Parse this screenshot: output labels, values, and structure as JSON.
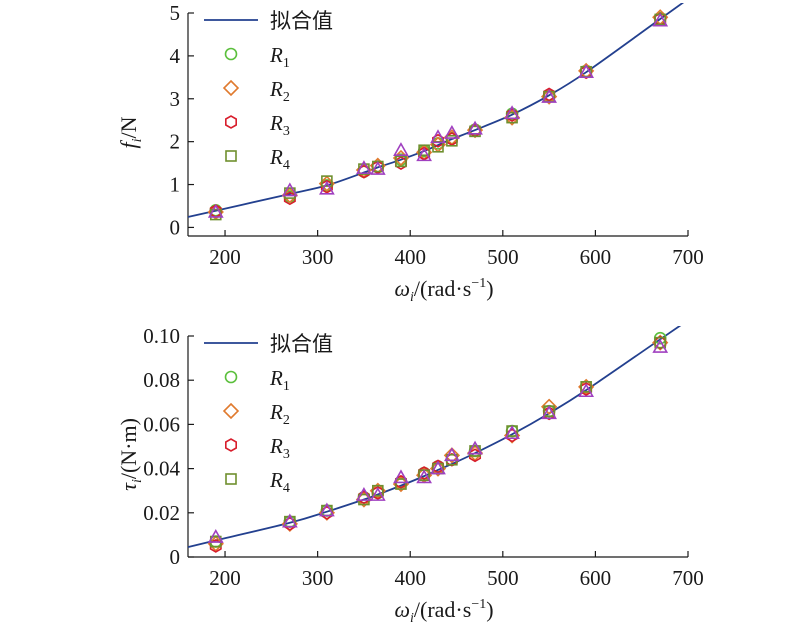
{
  "chart_data": [
    {
      "type": "scatter",
      "fit_line": true,
      "x_data": [
        190,
        270,
        310,
        350,
        365,
        390,
        415,
        430,
        445,
        470,
        510,
        550,
        590,
        670
      ],
      "fit_y": [
        0.39,
        0.78,
        0.98,
        1.28,
        1.4,
        1.58,
        1.78,
        1.92,
        2.06,
        2.27,
        2.63,
        3.08,
        3.62,
        4.86
      ],
      "x_ticks": [
        "200",
        "300",
        "400",
        "500",
        "600",
        "700"
      ],
      "y_ticks": [
        "0",
        "1",
        "2",
        "3",
        "4",
        "5"
      ],
      "xlim": [
        160,
        700
      ],
      "ylim": [
        -0.2,
        5
      ],
      "x_tick_values": [
        200,
        300,
        400,
        500,
        600,
        700
      ],
      "y_tick_values": [
        0,
        1,
        2,
        3,
        4,
        5
      ],
      "ylabel": {
        "main": "f",
        "sub": "i",
        "rest": "/N"
      },
      "xlabel": {
        "main": "ω",
        "sub": "i",
        "rest": "/(rad·s",
        "sup": "−1",
        "close": ")"
      },
      "legend_fit": "拟合值",
      "series": [
        {
          "name": "R1",
          "name_main": "R",
          "name_sub": "1",
          "marker": "circle",
          "color": "#5bbf3c",
          "values": [
            0.4,
            0.72,
            0.98,
            1.3,
            1.42,
            1.58,
            1.78,
            1.96,
            2.08,
            2.28,
            2.65,
            3.08,
            3.65,
            4.88
          ]
        },
        {
          "name": "R2",
          "name_main": "R",
          "name_sub": "2",
          "marker": "diamond",
          "color": "#e07a2e",
          "values": [
            0.36,
            0.75,
            1.02,
            1.34,
            1.44,
            1.62,
            1.75,
            1.93,
            2.1,
            2.27,
            2.56,
            3.05,
            3.65,
            4.9
          ]
        },
        {
          "name": "R3",
          "name_main": "R",
          "name_sub": "3",
          "marker": "hexagon",
          "color": "#d81e2c",
          "values": [
            0.38,
            0.68,
            0.95,
            1.3,
            1.4,
            1.5,
            1.72,
            2.02,
            2.06,
            2.26,
            2.62,
            3.1,
            3.62,
            4.85
          ]
        },
        {
          "name": "R4",
          "name_main": "R",
          "name_sub": "4",
          "marker": "square",
          "color": "#6f8f2e",
          "values": [
            0.3,
            0.8,
            1.08,
            1.36,
            1.42,
            1.54,
            1.8,
            1.88,
            2.02,
            2.24,
            2.56,
            3.05,
            3.63,
            4.85
          ]
        },
        {
          "name": "",
          "marker": "triangle",
          "color": "#a040c0",
          "values": [
            0.36,
            0.86,
            0.9,
            1.38,
            1.36,
            1.8,
            1.68,
            2.1,
            2.2,
            2.3,
            2.66,
            3.04,
            3.62,
            4.82
          ]
        }
      ]
    },
    {
      "type": "scatter",
      "fit_line": true,
      "x_data": [
        190,
        270,
        310,
        350,
        365,
        390,
        415,
        430,
        445,
        470,
        510,
        550,
        590,
        670
      ],
      "fit_y": [
        0.0075,
        0.0155,
        0.0205,
        0.026,
        0.0283,
        0.0323,
        0.0366,
        0.0394,
        0.0421,
        0.047,
        0.0555,
        0.065,
        0.0755,
        0.0985
      ],
      "x_ticks": [
        "200",
        "300",
        "400",
        "500",
        "600",
        "700"
      ],
      "y_ticks": [
        "0",
        "0.02",
        "0.04",
        "0.06",
        "0.08",
        "0.10"
      ],
      "xlim": [
        160,
        700
      ],
      "ylim": [
        0,
        0.1
      ],
      "x_tick_values": [
        200,
        300,
        400,
        500,
        600,
        700
      ],
      "y_tick_values": [
        0,
        0.02,
        0.04,
        0.06,
        0.08,
        0.1
      ],
      "ylabel": {
        "main": "τ",
        "sub": "i",
        "rest": "/(N·m)"
      },
      "xlabel": {
        "main": "ω",
        "sub": "i",
        "rest": "/(rad·s",
        "sup": "−1",
        "close": ")"
      },
      "legend_fit": "拟合值",
      "series": [
        {
          "name": "R1",
          "name_main": "R",
          "name_sub": "1",
          "marker": "circle",
          "color": "#5bbf3c",
          "values": [
            0.007,
            0.016,
            0.021,
            0.027,
            0.029,
            0.034,
            0.038,
            0.041,
            0.044,
            0.048,
            0.057,
            0.066,
            0.077,
            0.099
          ]
        },
        {
          "name": "R2",
          "name_main": "R",
          "name_sub": "2",
          "marker": "diamond",
          "color": "#e07a2e",
          "values": [
            0.006,
            0.015,
            0.02,
            0.026,
            0.03,
            0.033,
            0.037,
            0.04,
            0.046,
            0.047,
            0.055,
            0.068,
            0.077,
            0.097
          ]
        },
        {
          "name": "R3",
          "name_main": "R",
          "name_sub": "3",
          "marker": "hexagon",
          "color": "#d81e2c",
          "values": [
            0.005,
            0.015,
            0.02,
            0.027,
            0.029,
            0.034,
            0.038,
            0.041,
            0.044,
            0.046,
            0.055,
            0.065,
            0.076,
            0.097
          ]
        },
        {
          "name": "R4",
          "name_main": "R",
          "name_sub": "4",
          "marker": "square",
          "color": "#6f8f2e",
          "values": [
            0.007,
            0.016,
            0.021,
            0.026,
            0.03,
            0.033,
            0.037,
            0.04,
            0.044,
            0.048,
            0.057,
            0.066,
            0.077,
            0.097
          ]
        },
        {
          "name": "",
          "marker": "triangle",
          "color": "#a040c0",
          "values": [
            0.009,
            0.016,
            0.021,
            0.028,
            0.028,
            0.036,
            0.036,
            0.04,
            0.046,
            0.049,
            0.056,
            0.065,
            0.075,
            0.095
          ]
        }
      ]
    }
  ],
  "colors": {
    "fit_line": "#23408f",
    "axis": "#1a1a1a"
  }
}
